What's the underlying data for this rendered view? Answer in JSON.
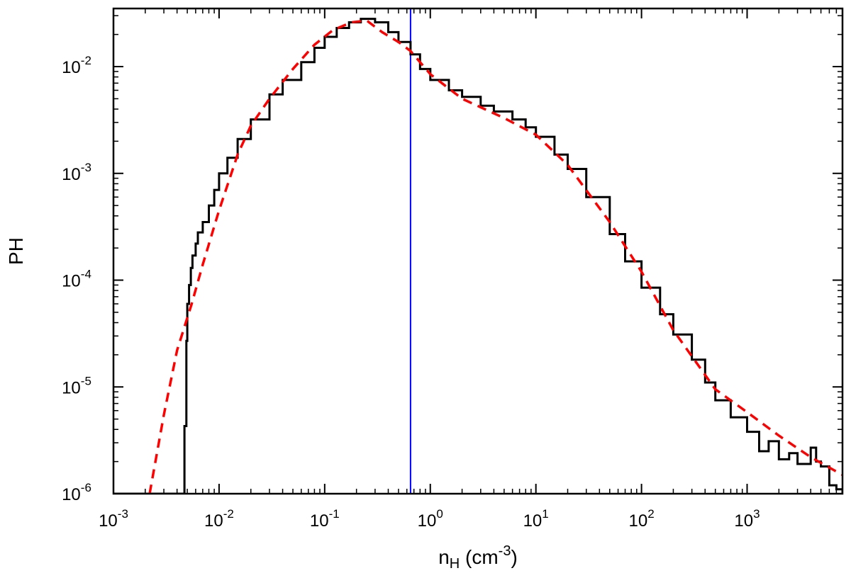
{
  "chart_data": {
    "type": "line",
    "title": "",
    "xlabel": {
      "base": "n",
      "sub": "H",
      "unit_open": " (cm",
      "unit_sup": "-3",
      "unit_close": ")"
    },
    "ylabel": "PH",
    "x_scale": "log",
    "y_scale": "log",
    "xlim": [
      0.001,
      8000
    ],
    "ylim": [
      1e-06,
      0.035
    ],
    "grid": false,
    "legend": "none",
    "x_ticks": [
      {
        "value": 0.001,
        "base": "10",
        "exp": "-3"
      },
      {
        "value": 0.01,
        "base": "10",
        "exp": "-2"
      },
      {
        "value": 0.1,
        "base": "10",
        "exp": "-1"
      },
      {
        "value": 1,
        "base": "10",
        "exp": "0"
      },
      {
        "value": 10,
        "base": "10",
        "exp": "1"
      },
      {
        "value": 100,
        "base": "10",
        "exp": "2"
      },
      {
        "value": 1000,
        "base": "10",
        "exp": "3"
      }
    ],
    "y_ticks": [
      {
        "value": 0.01,
        "base": "10",
        "exp": "-2"
      },
      {
        "value": 0.001,
        "base": "10",
        "exp": "-3"
      },
      {
        "value": 0.0001,
        "base": "10",
        "exp": "-4"
      },
      {
        "value": 1e-05,
        "base": "10",
        "exp": "-5"
      },
      {
        "value": 1e-06,
        "base": "10",
        "exp": "-6"
      }
    ],
    "vertical_line": {
      "x": 0.65,
      "color": "#0000ff"
    },
    "series": [
      {
        "style": "histogram-step",
        "color": "#000000",
        "x": [
          0.001,
          0.0046,
          0.0047,
          0.0049,
          0.005,
          0.0052,
          0.0054,
          0.0056,
          0.006,
          0.0063,
          0.007,
          0.008,
          0.009,
          0.01,
          0.012,
          0.015,
          0.02,
          0.03,
          0.04,
          0.06,
          0.08,
          0.1,
          0.13,
          0.17,
          0.22,
          0.3,
          0.4,
          0.5,
          0.65,
          0.8,
          1,
          1.5,
          2,
          3,
          4,
          6,
          8,
          10,
          15,
          20,
          30,
          50,
          70,
          100,
          150,
          200,
          300,
          400,
          500,
          700,
          1000,
          1300,
          1600,
          2000,
          2500,
          3000,
          4000,
          4500,
          5000,
          6000,
          7000,
          8000
        ],
        "y": [
          1e-06,
          1e-06,
          4.3e-06,
          2.7e-05,
          6e-05,
          9e-05,
          0.00013,
          0.00017,
          0.00022,
          0.00028,
          0.00035,
          0.0005,
          0.0007,
          0.001,
          0.0014,
          0.0021,
          0.0032,
          0.0055,
          0.0075,
          0.011,
          0.015,
          0.019,
          0.023,
          0.026,
          0.028,
          0.026,
          0.021,
          0.017,
          0.013,
          0.0095,
          0.0075,
          0.006,
          0.0052,
          0.0043,
          0.0038,
          0.0032,
          0.0027,
          0.0022,
          0.0015,
          0.0011,
          0.0006,
          0.00027,
          0.00015,
          8.5e-05,
          4.8e-05,
          3.1e-05,
          1.8e-05,
          1.1e-05,
          7.5e-06,
          5.2e-06,
          3.8e-06,
          2.5e-06,
          3.1e-06,
          2.1e-06,
          2.4e-06,
          1.9e-06,
          2.7e-06,
          2e-06,
          1.8e-06,
          1.2e-06,
          1.1e-06,
          1e-06
        ]
      },
      {
        "style": "dashed",
        "color": "#ff0000",
        "x": [
          0.0022,
          0.003,
          0.004,
          0.0055,
          0.007,
          0.01,
          0.015,
          0.02,
          0.03,
          0.05,
          0.08,
          0.12,
          0.18,
          0.25,
          0.35,
          0.5,
          0.65,
          1,
          2,
          5,
          10,
          20,
          50,
          100,
          200,
          500,
          1000,
          2000,
          4000,
          8000
        ],
        "y": [
          1e-06,
          5.5e-06,
          2.2e-05,
          6e-05,
          0.00014,
          0.00045,
          0.0015,
          0.0028,
          0.005,
          0.0095,
          0.016,
          0.022,
          0.026,
          0.027,
          0.021,
          0.017,
          0.014,
          0.0085,
          0.005,
          0.0033,
          0.0023,
          0.0012,
          0.00035,
          0.00012,
          3.4e-05,
          9.5e-06,
          5.8e-06,
          3.5e-06,
          2.2e-06,
          1.5e-06
        ]
      }
    ]
  }
}
